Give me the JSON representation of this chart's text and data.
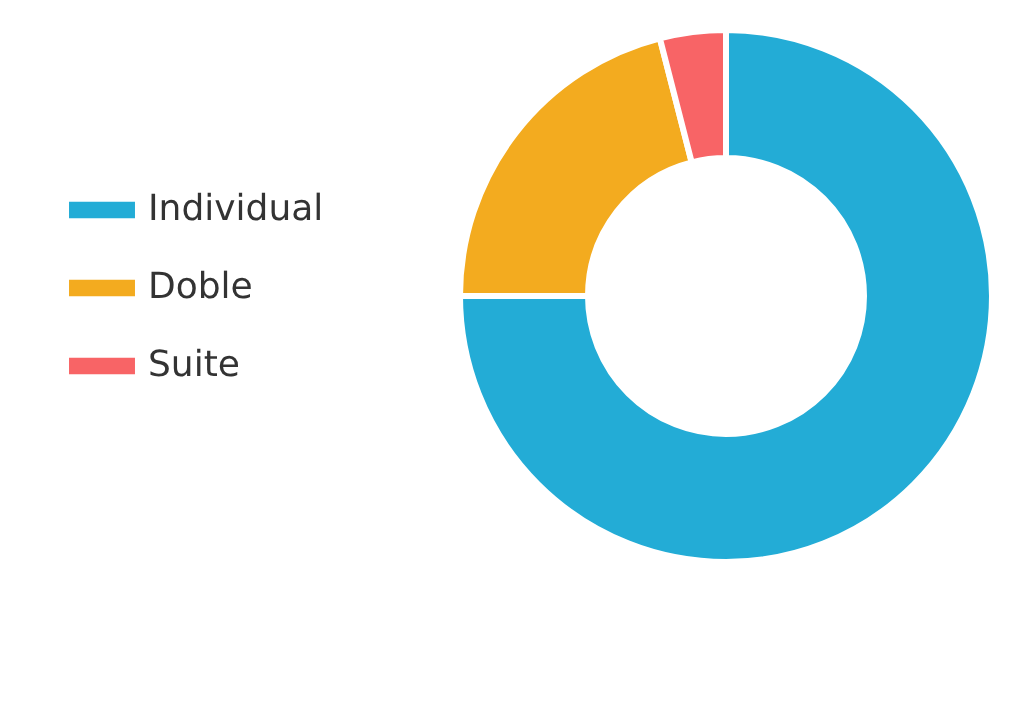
{
  "chart_data": {
    "type": "donut",
    "categories": [
      "Individual",
      "Doble",
      "Suite"
    ],
    "values": [
      75,
      21,
      4
    ],
    "colors": [
      "#23acd6",
      "#f3ab1f",
      "#f86466"
    ],
    "legend": "left"
  }
}
